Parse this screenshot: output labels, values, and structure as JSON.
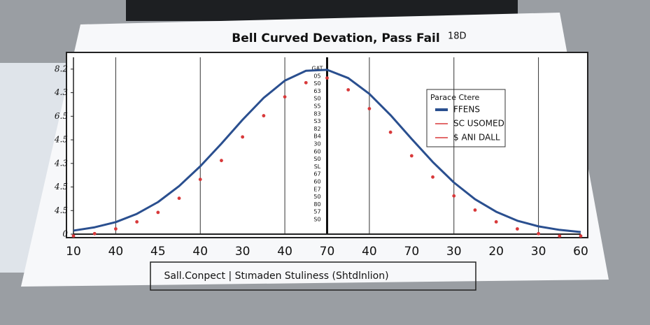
{
  "chart_data": {
    "type": "line",
    "title": "Bell Curved Devation, Pass Fail",
    "title_note": "18D",
    "x_label": "Sall.Conpect | Stımaden Stuliness (Shtdlnlion)",
    "xlim": [
      0,
      12
    ],
    "xticks": [
      {
        "value": 0,
        "label": "10"
      },
      {
        "value": 1,
        "label": "40"
      },
      {
        "value": 2,
        "label": "45"
      },
      {
        "value": 3,
        "label": "40"
      },
      {
        "value": 4,
        "label": "30"
      },
      {
        "value": 5,
        "label": "40"
      },
      {
        "value": 6,
        "label": "70"
      },
      {
        "value": 7,
        "label": "40"
      },
      {
        "value": 8,
        "label": "70"
      },
      {
        "value": 9,
        "label": "30"
      },
      {
        "value": 10,
        "label": "20"
      },
      {
        "value": 11,
        "label": "30"
      },
      {
        "value": 12,
        "label": "60"
      }
    ],
    "ylim": [
      0,
      7.5
    ],
    "yticks": [
      0,
      {
        "value": 1,
        "label": "4.5"
      },
      {
        "value": 2,
        "label": "4.5"
      },
      {
        "value": 3,
        "label": "4.3"
      },
      {
        "value": 4,
        "label": "4.5"
      },
      {
        "value": 5,
        "label": "6.5"
      },
      {
        "value": 6,
        "label": "4.3"
      },
      {
        "value": 7,
        "label": "8.2"
      }
    ],
    "grid": true,
    "center_labels": [
      "GAT",
      "05",
      "S0",
      "63",
      "S0",
      "S5",
      "83",
      "S3",
      "82",
      "B4",
      "30",
      "60",
      "S0",
      "SL",
      "67",
      "60",
      "E7",
      "50",
      "80",
      "57",
      "S0"
    ],
    "legend": {
      "title": "Parace Ctere",
      "position": "upper right"
    },
    "series": [
      {
        "name": "FFENS",
        "color": "#2a4f8f",
        "style": "line",
        "x": [
          0,
          0.5,
          1,
          1.5,
          2,
          2.5,
          3,
          3.5,
          4,
          4.5,
          5,
          5.5,
          6,
          6.5,
          7,
          7.5,
          8,
          8.5,
          9,
          9.5,
          10,
          10.5,
          11,
          11.5,
          12
        ],
        "values": [
          0.15,
          0.29,
          0.51,
          0.86,
          1.36,
          2.04,
          2.88,
          3.84,
          4.85,
          5.78,
          6.51,
          6.93,
          6.97,
          6.62,
          5.95,
          5.05,
          4.04,
          3.06,
          2.19,
          1.48,
          0.95,
          0.57,
          0.33,
          0.18,
          0.09
        ]
      },
      {
        "name": "SC USOMED",
        "color": "#d8393a",
        "style": "dots",
        "x": [
          0,
          0.5,
          1,
          1.5,
          2,
          2.5,
          3,
          3.5,
          4,
          4.5,
          5,
          5.5,
          6,
          6.5,
          7,
          7.5,
          8,
          8.5,
          9,
          9.5,
          10,
          10.5,
          11,
          11.5,
          12
        ],
        "values": [
          0.1,
          0.2,
          0.4,
          0.7,
          1.1,
          1.7,
          2.5,
          3.3,
          4.3,
          5.2,
          6.0,
          6.6,
          6.8,
          6.3,
          5.5,
          4.5,
          3.5,
          2.6,
          1.8,
          1.2,
          0.7,
          0.4,
          0.2,
          0.1,
          0.1
        ]
      },
      {
        "name": "$ ANI DALL",
        "color": "#d8393a",
        "style": "line",
        "x": [],
        "values": []
      }
    ]
  }
}
